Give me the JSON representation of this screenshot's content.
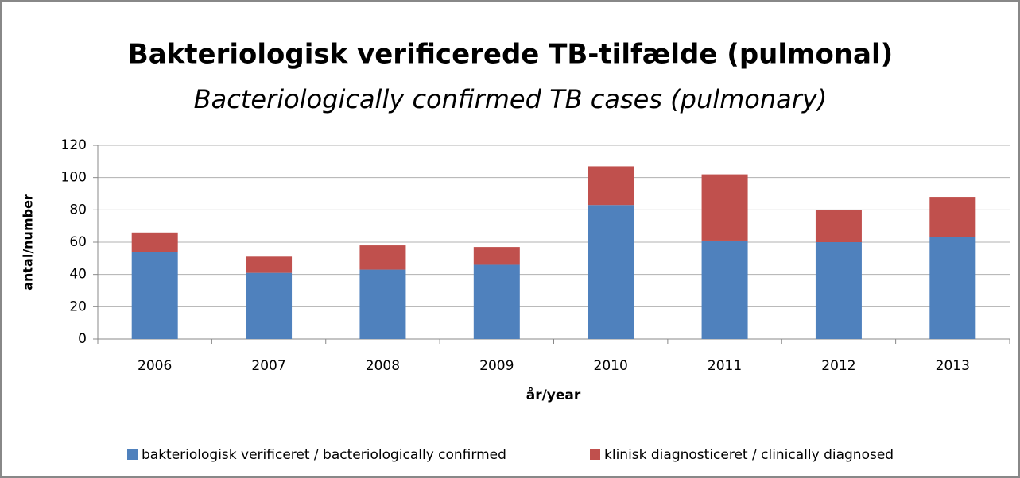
{
  "chart_data": {
    "type": "stacked_bar",
    "title": "Bakteriologisk verificerede TB-tilfælde (pulmonal)",
    "subtitle": "Bacteriologically confirmed TB cases (pulmonary)",
    "x_label": "år/year",
    "y_label": "antal/number",
    "categories": [
      "2006",
      "2007",
      "2008",
      "2009",
      "2010",
      "2011",
      "2012",
      "2013"
    ],
    "series": [
      {
        "name": "bakteriologisk verificeret / bacteriologically confirmed",
        "color": "#4f81bd",
        "values": [
          54,
          41,
          43,
          46,
          83,
          61,
          60,
          63
        ]
      },
      {
        "name": "klinisk diagnosticeret / clinically diagnosed",
        "color": "#c0504d",
        "values": [
          12,
          10,
          15,
          11,
          24,
          41,
          20,
          25
        ]
      }
    ],
    "ylim": [
      0,
      120
    ],
    "yticks": [
      0,
      20,
      40,
      60,
      80,
      100,
      120
    ],
    "grid": true,
    "legend": "bottom"
  }
}
